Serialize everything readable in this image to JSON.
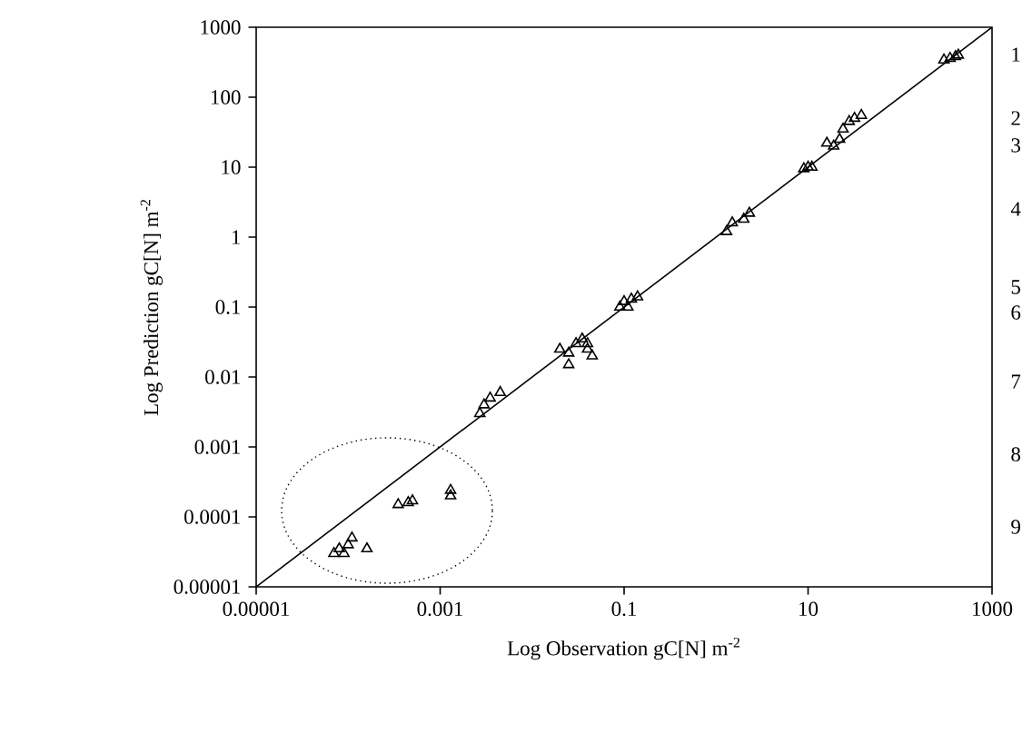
{
  "chart_data": {
    "type": "scatter",
    "xlabel": "Log Observation gC[N] m$^{-2}$",
    "ylabel": "Log Prediction gC[N] m$^{-2}$",
    "log": "xy",
    "xlim": [
      1e-05,
      1000
    ],
    "ylim": [
      1e-05,
      1000
    ],
    "xticks": [
      {
        "value": 1e-05,
        "label": "0.00001"
      },
      {
        "value": 0.001,
        "label": "0.001"
      },
      {
        "value": 0.1,
        "label": "0.1"
      },
      {
        "value": 10,
        "label": "10"
      },
      {
        "value": 1000,
        "label": "1000"
      }
    ],
    "yticks": [
      {
        "value": 1e-05,
        "label": "0.00001"
      },
      {
        "value": 0.0001,
        "label": "0.0001"
      },
      {
        "value": 0.001,
        "label": "0.001"
      },
      {
        "value": 0.01,
        "label": "0.01"
      },
      {
        "value": 0.1,
        "label": "0.1"
      },
      {
        "value": 1,
        "label": "1"
      },
      {
        "value": 10,
        "label": "10"
      },
      {
        "value": 100,
        "label": "100"
      },
      {
        "value": 1000,
        "label": "1000"
      }
    ],
    "series": [
      {
        "color": "#000000",
        "marker": "triangle",
        "x": [
          7e-05,
          8e-05,
          9e-05,
          0.0001,
          0.00011,
          0.00016,
          0.00035,
          0.00045,
          0.0005,
          0.0013,
          0.0013,
          0.0027,
          0.003,
          0.0035,
          0.0045,
          0.02,
          0.025,
          0.03,
          0.035,
          0.04,
          0.025,
          0.045,
          0.04,
          0.09,
          0.1,
          0.12,
          0.14,
          0.11,
          1.3,
          1.5,
          2,
          2.3,
          9,
          10,
          11,
          16,
          19,
          22,
          24,
          28,
          32,
          38,
          300,
          350,
          400,
          430
        ],
        "values": [
          3e-05,
          3.5e-05,
          3e-05,
          4e-05,
          5e-05,
          3.5e-05,
          0.00015,
          0.00016,
          0.00017,
          0.00024,
          0.0002,
          0.003,
          0.004,
          0.005,
          0.006,
          0.025,
          0.022,
          0.03,
          0.035,
          0.03,
          0.015,
          0.02,
          0.025,
          0.1,
          0.12,
          0.13,
          0.14,
          0.1,
          1.2,
          1.6,
          1.8,
          2.2,
          9.5,
          10,
          10,
          22,
          20,
          25,
          35,
          45,
          50,
          55,
          340,
          360,
          380,
          400
        ]
      },
      {
        "type": "line",
        "color": "#000000",
        "x": [
          1e-05,
          1000
        ],
        "values": [
          1e-05,
          1000
        ]
      }
    ],
    "annotations": [
      "1",
      "2",
      "3",
      "4",
      "5",
      "6",
      "7",
      "8",
      "9"
    ]
  }
}
